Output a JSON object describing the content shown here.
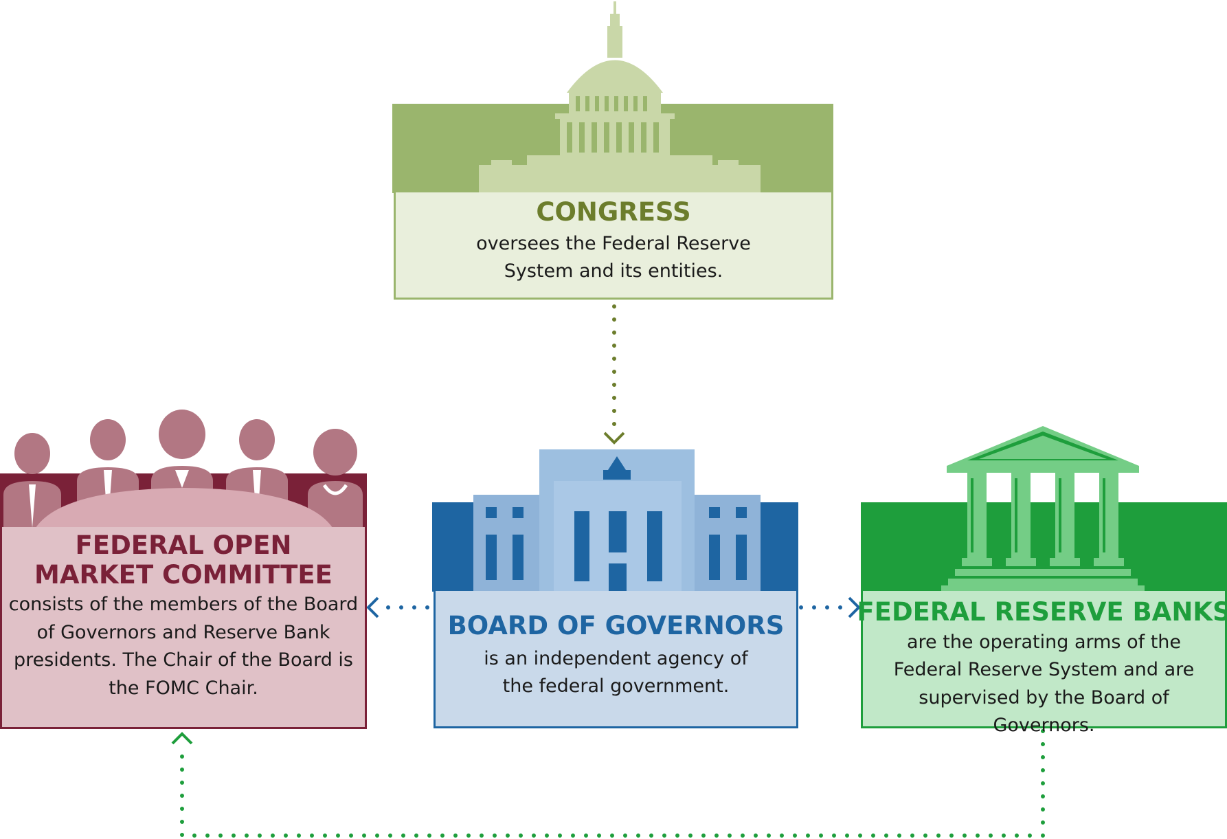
{
  "congress": {
    "title": "CONGRESS",
    "description": "oversees the Federal Reserve System and its entities."
  },
  "board": {
    "title": "BOARD OF GOVERNORS",
    "description": "is an independent agency of the federal government."
  },
  "fomc": {
    "title": "FEDERAL OPEN MARKET COMMITTEE",
    "description": "consists of the members of the Board of Governors and Reserve Bank presidents. The Chair of the Board is the FOMC Chair."
  },
  "banks": {
    "title": "FEDERAL RESERVE BANKS",
    "description": "are the operating arms of the Federal Reserve System and are supervised by the Board of Governors."
  },
  "colors": {
    "congress_dark": "#9ab56d",
    "congress_light": "#e9efdc",
    "congress_text": "#6c7d2c",
    "board_dark": "#1e65a2",
    "board_light": "#c9d9ea",
    "fomc_dark": "#7a2138",
    "fomc_light": "#e0c1c7",
    "banks_dark": "#1e9e3c",
    "banks_light": "#c1e8c8"
  },
  "icons": [
    "capitol-icon",
    "federal-building-icon",
    "committee-people-icon",
    "bank-columns-icon"
  ]
}
